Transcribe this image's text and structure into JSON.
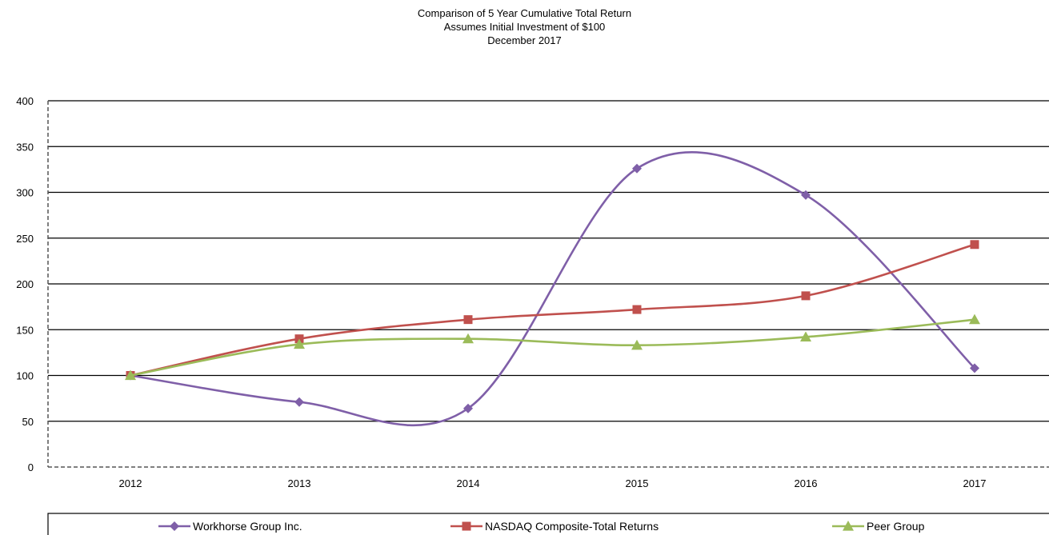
{
  "chart_data": {
    "type": "line",
    "title": "Comparison of 5 Year Cumulative Total Return",
    "subtitle": [
      "Assumes Initial Investment of $100",
      "December 2017"
    ],
    "xlabel": "",
    "ylabel": "",
    "categories": [
      "2012",
      "2013",
      "2014",
      "2015",
      "2016",
      "2017"
    ],
    "ylim": [
      0,
      400
    ],
    "yticks": [
      0,
      50,
      100,
      150,
      200,
      250,
      300,
      350,
      400
    ],
    "grid": true,
    "legend_position": "bottom",
    "series": [
      {
        "name": "Workhorse Group Inc.",
        "color": "#7f5fa8",
        "marker": "diamond",
        "values": [
          100,
          71,
          64,
          326,
          297,
          108
        ]
      },
      {
        "name": "NASDAQ Composite-Total Returns",
        "color": "#c0504d",
        "marker": "square",
        "values": [
          100,
          140,
          161,
          172,
          187,
          243
        ]
      },
      {
        "name": "Peer Group",
        "color": "#9bbb59",
        "marker": "triangle",
        "values": [
          100,
          134,
          140,
          133,
          142,
          161
        ]
      }
    ]
  }
}
